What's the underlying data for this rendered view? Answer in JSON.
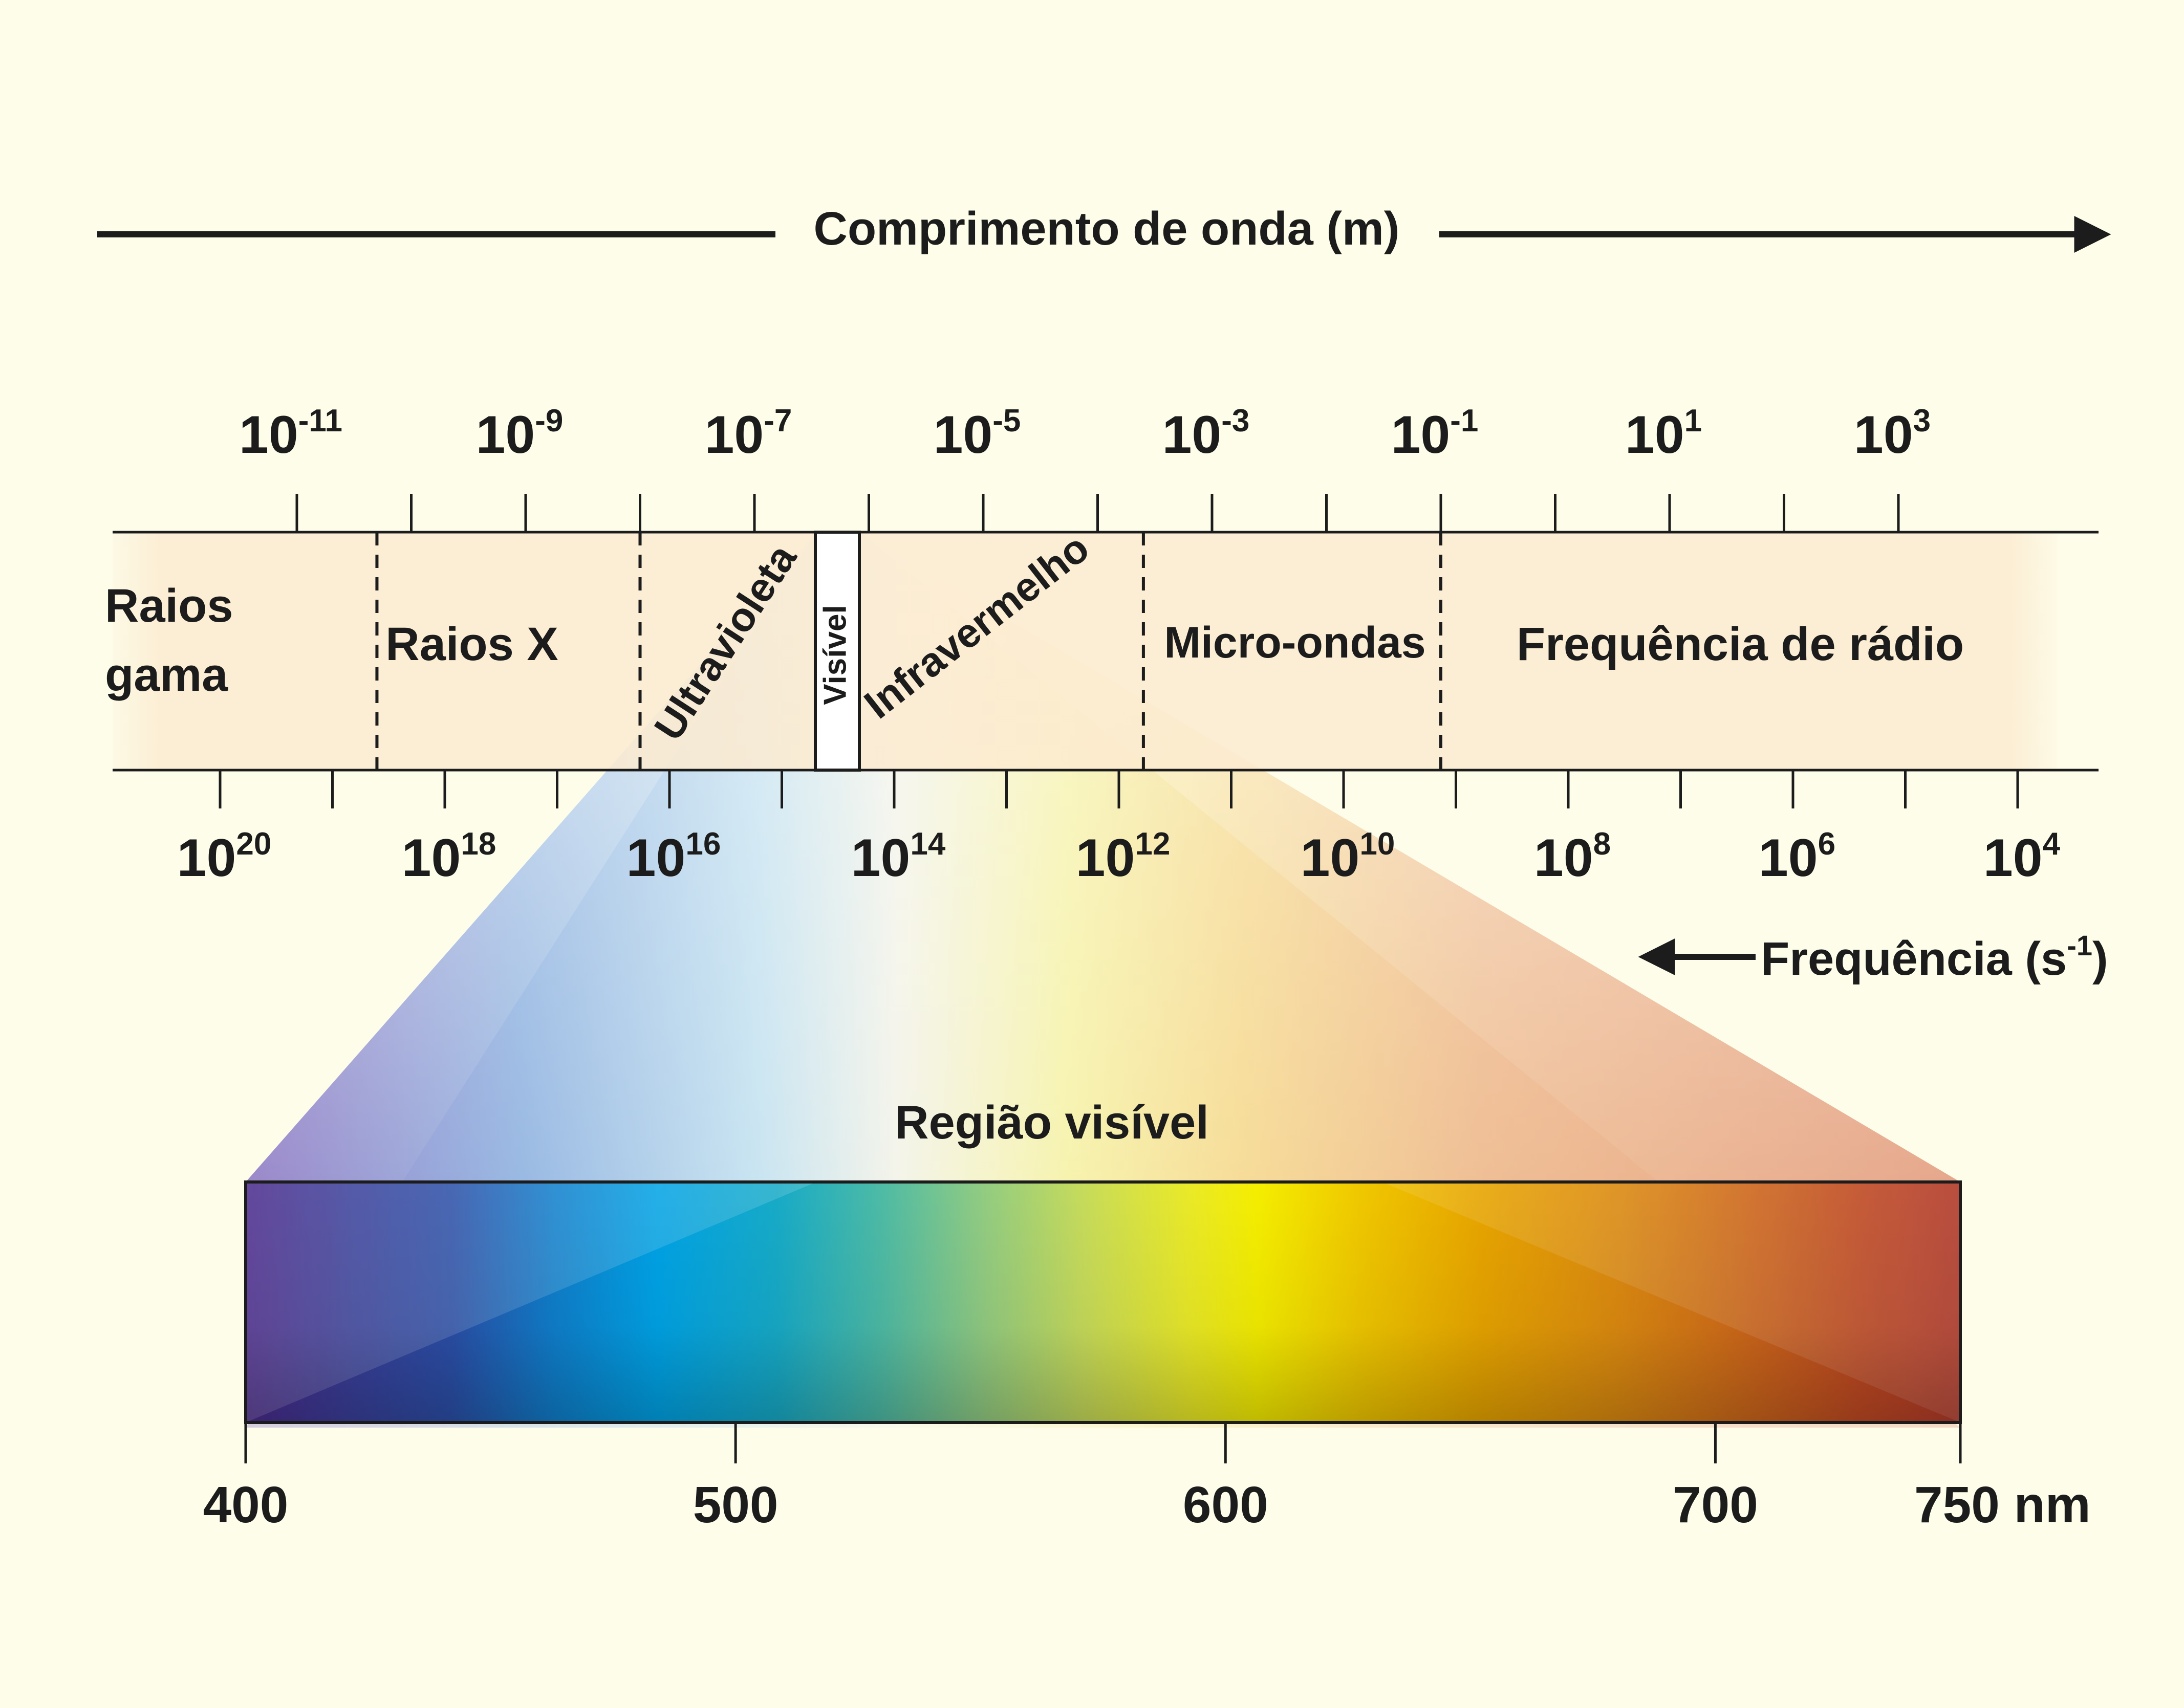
{
  "wavelength_axis": {
    "label": "Comprimento de onda (m)",
    "base": "10",
    "exponents": [
      "-11",
      "-9",
      "-7",
      "-5",
      "-3",
      "-1",
      "1",
      "3"
    ]
  },
  "frequency_axis": {
    "label_main": "Frequência (s",
    "label_exp": "-1",
    "label_close": ")",
    "base": "10",
    "exponents": [
      "20",
      "18",
      "16",
      "14",
      "12",
      "10",
      "8",
      "6",
      "4"
    ]
  },
  "regions": {
    "gamma_line1": "Raios",
    "gamma_line2": "gama",
    "xray": "Raios X",
    "uv": "Ultravioleta",
    "visible": "Visível",
    "ir": "Infravermelho",
    "microwave": "Micro-ondas",
    "radio": "Frequência de rádio"
  },
  "visible_region": {
    "title": "Região visível",
    "ticks": [
      "400",
      "500",
      "600",
      "700",
      "750 nm"
    ],
    "tick_values_nm": [
      400,
      500,
      600,
      700,
      750
    ]
  },
  "colors": {
    "background": "#fdfdea",
    "band_fill": "#fcebd0",
    "ink": "#1c1c1c"
  }
}
